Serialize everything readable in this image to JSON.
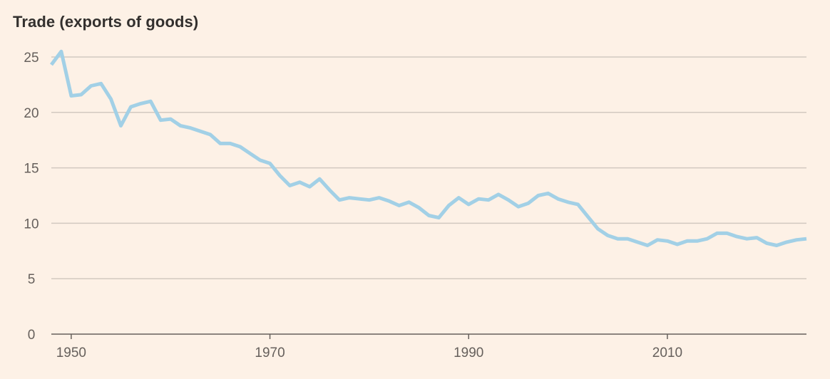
{
  "chart_data": {
    "type": "line",
    "title": "Trade (exports of goods)",
    "xlabel": "",
    "ylabel": "",
    "xlim": [
      1948,
      2024
    ],
    "ylim": [
      0,
      25
    ],
    "x_ticks": [
      1950,
      1970,
      1990,
      2010
    ],
    "y_ticks": [
      0,
      5,
      10,
      15,
      20,
      25
    ],
    "grid": "horizontal",
    "series_color": "#A2D0E6",
    "series": [
      {
        "x": [
          1948,
          1949,
          1950,
          1951,
          1952,
          1953,
          1954,
          1955,
          1956,
          1957,
          1958,
          1959,
          1960,
          1961,
          1962,
          1963,
          1964,
          1965,
          1966,
          1967,
          1968,
          1969,
          1970,
          1971,
          1972,
          1973,
          1974,
          1975,
          1976,
          1977,
          1978,
          1979,
          1980,
          1981,
          1982,
          1983,
          1984,
          1985,
          1986,
          1987,
          1988,
          1989,
          1990,
          1991,
          1992,
          1993,
          1994,
          1995,
          1996,
          1997,
          1998,
          1999,
          2000,
          2001,
          2002,
          2003,
          2004,
          2005,
          2006,
          2007,
          2008,
          2009,
          2010,
          2011,
          2012,
          2013,
          2014,
          2015,
          2016,
          2017,
          2018,
          2019,
          2020,
          2021,
          2022,
          2023,
          2024
        ],
        "values": [
          24.3,
          25.5,
          21.5,
          21.6,
          22.4,
          22.6,
          21.2,
          18.8,
          20.5,
          20.8,
          21.0,
          19.3,
          19.4,
          18.8,
          18.6,
          18.3,
          18.0,
          17.2,
          17.2,
          16.9,
          16.3,
          15.7,
          15.4,
          14.3,
          13.4,
          13.7,
          13.3,
          14.0,
          13.0,
          12.1,
          12.3,
          12.2,
          12.1,
          12.3,
          12.0,
          11.6,
          11.9,
          11.4,
          10.7,
          10.5,
          11.6,
          12.3,
          11.7,
          12.2,
          12.1,
          12.6,
          12.1,
          11.5,
          11.8,
          12.5,
          12.7,
          12.2,
          11.9,
          11.7,
          10.6,
          9.5,
          8.9,
          8.6,
          8.6,
          8.3,
          8.0,
          8.5,
          8.4,
          8.1,
          8.4,
          8.4,
          8.6,
          9.1,
          9.1,
          8.8,
          8.6,
          8.7,
          8.2,
          8.0,
          8.3,
          8.5,
          8.6
        ]
      }
    ]
  }
}
